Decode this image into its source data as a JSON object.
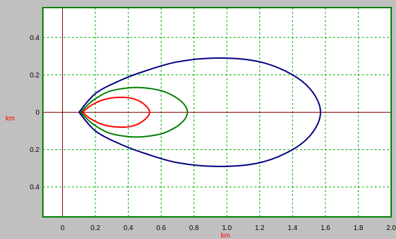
{
  "chart_data": {
    "type": "line",
    "xlabel": "km",
    "ylabel": "km",
    "xlim": [
      -0.12,
      2.0
    ],
    "ylim": [
      -0.56,
      0.56
    ],
    "x_ticks": [
      {
        "value": 0,
        "label": "0"
      },
      {
        "value": 0.2,
        "label": "0.2"
      },
      {
        "value": 0.4,
        "label": "0.4"
      },
      {
        "value": 0.6,
        "label": "0.6"
      },
      {
        "value": 0.8,
        "label": "0.8"
      },
      {
        "value": 1.0,
        "label": "1.0"
      },
      {
        "value": 1.2,
        "label": "1.2"
      },
      {
        "value": 1.4,
        "label": "1.4"
      },
      {
        "value": 1.6,
        "label": "1.6"
      },
      {
        "value": 1.8,
        "label": "1.8"
      },
      {
        "value": 2.0,
        "label": "2.0"
      }
    ],
    "y_ticks": [
      {
        "value": 0.4,
        "label": "0.4"
      },
      {
        "value": 0.2,
        "label": "0.2"
      },
      {
        "value": 0,
        "label": "0"
      },
      {
        "value": -0.2,
        "label": "0.2"
      },
      {
        "value": -0.4,
        "label": "0.4"
      }
    ],
    "grid": true,
    "grid_color": "#00aa00",
    "frame_color": "#008000",
    "axis_line_color": "#800000",
    "axis_title_color": "#ff0000",
    "plot_background": "#ffffff",
    "page_background": "#c0c0c0",
    "series": [
      {
        "color": "#000080",
        "x": [
          0.1,
          0.2,
          0.35,
          0.5,
          0.7,
          0.95,
          1.2,
          1.4,
          1.52,
          1.57,
          1.52,
          1.4,
          1.2,
          0.95,
          0.7,
          0.5,
          0.35,
          0.2,
          0.1
        ],
        "y": [
          0.0,
          0.1,
          0.17,
          0.22,
          0.27,
          0.29,
          0.27,
          0.2,
          0.11,
          0.0,
          -0.11,
          -0.2,
          -0.27,
          -0.29,
          -0.27,
          -0.22,
          -0.17,
          -0.1,
          0.0
        ]
      },
      {
        "color": "#008000",
        "x": [
          0.11,
          0.18,
          0.28,
          0.4,
          0.5,
          0.62,
          0.72,
          0.76,
          0.72,
          0.62,
          0.5,
          0.4,
          0.28,
          0.18,
          0.11
        ],
        "y": [
          0.0,
          0.06,
          0.11,
          0.13,
          0.13,
          0.11,
          0.06,
          0.0,
          -0.06,
          -0.11,
          -0.13,
          -0.13,
          -0.11,
          -0.06,
          0.0
        ]
      },
      {
        "color": "#ff0000",
        "x": [
          0.12,
          0.18,
          0.26,
          0.36,
          0.44,
          0.5,
          0.53,
          0.5,
          0.44,
          0.36,
          0.26,
          0.18,
          0.12
        ],
        "y": [
          0.0,
          0.04,
          0.07,
          0.08,
          0.07,
          0.04,
          0.0,
          -0.04,
          -0.07,
          -0.08,
          -0.07,
          -0.04,
          0.0
        ]
      }
    ]
  }
}
